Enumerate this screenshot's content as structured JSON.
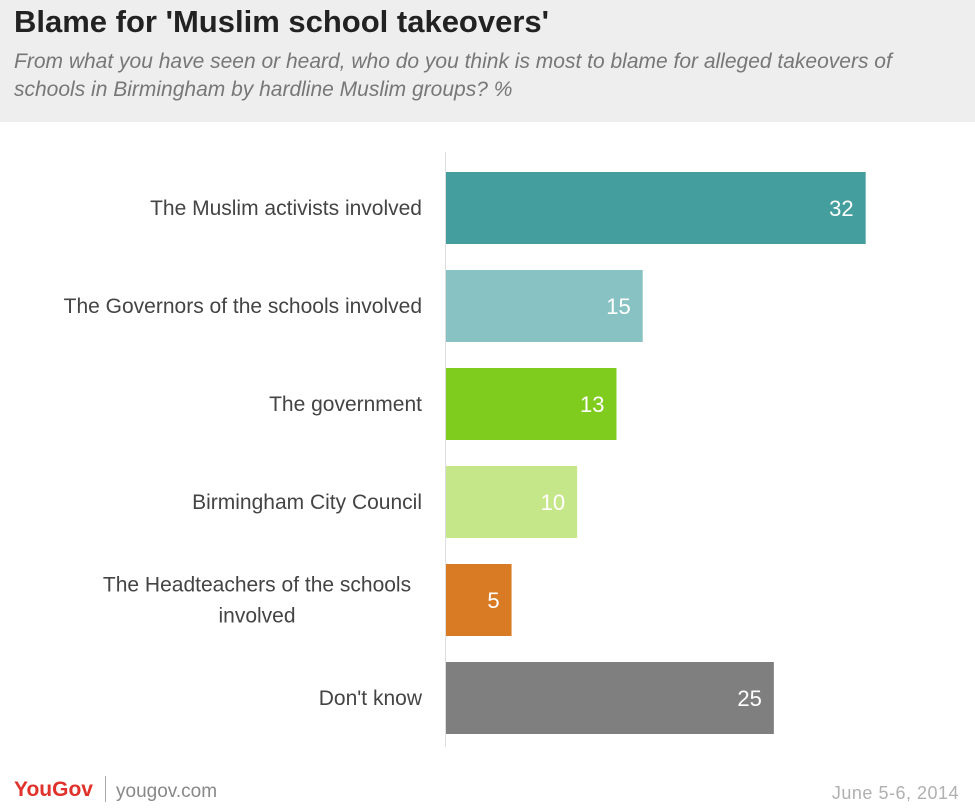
{
  "header": {
    "title": "Blame for 'Muslim school takeovers'",
    "subtitle": "From what you have seen or heard, who do you think is most to blame for alleged takeovers of schools in Birmingham by hardline Muslim groups? %"
  },
  "chart_data": {
    "type": "bar",
    "orientation": "horizontal",
    "categories": [
      "The Muslim activists involved",
      "The Governors of the schools involved",
      "The government",
      "Birmingham City Council",
      "The Headteachers of the schools involved",
      "Don't know"
    ],
    "category_lines": [
      [
        "The Muslim activists involved"
      ],
      [
        "The Governors of the schools involved"
      ],
      [
        "The government"
      ],
      [
        "Birmingham City Council"
      ],
      [
        "The Headteachers of the schools",
        "involved"
      ],
      [
        "Don't know"
      ]
    ],
    "values": [
      32,
      15,
      13,
      10,
      5,
      25
    ],
    "value_labels": [
      "32",
      "15",
      "13",
      "10",
      "5",
      "25"
    ],
    "colors": [
      "#449e9e",
      "#88c2c3",
      "#80cc1e",
      "#c6e68a",
      "#d97a25",
      "#7f7f7f"
    ],
    "xlim": [
      0,
      35
    ],
    "axis_visible": false,
    "grid": false,
    "legend": "none"
  },
  "footer": {
    "logo": "YouGov",
    "site": "yougov.com",
    "date": "June 5-6, 2014"
  }
}
